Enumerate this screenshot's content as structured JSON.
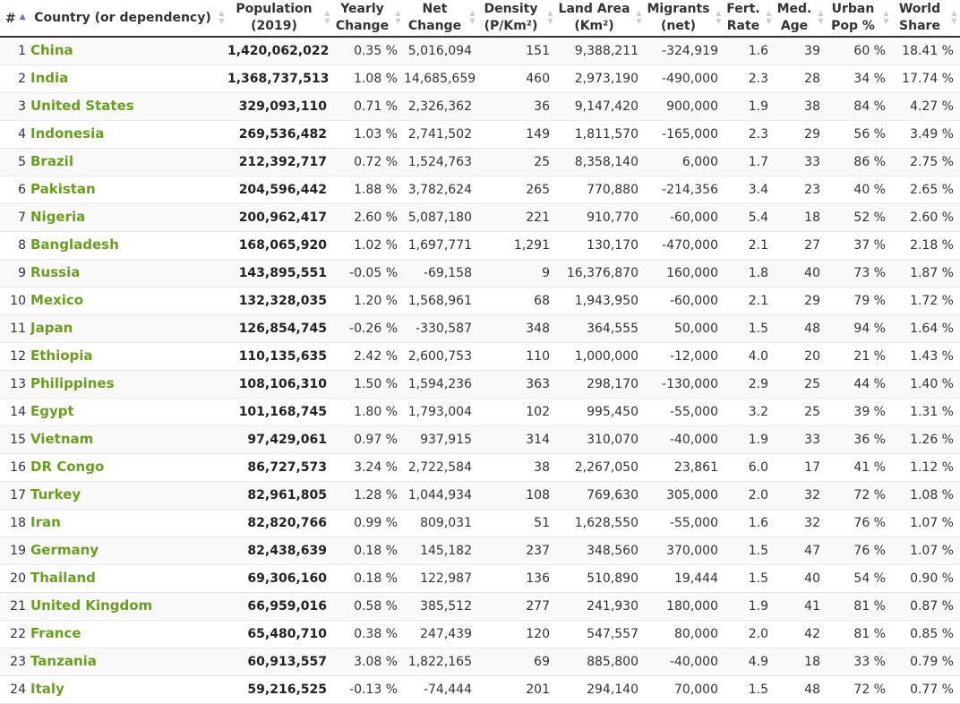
{
  "headers": {
    "rank": "#",
    "country": "Country (or dependency)",
    "population": [
      "Population",
      "(2019)"
    ],
    "yearly": [
      "Yearly",
      "Change"
    ],
    "net": [
      "Net",
      "Change"
    ],
    "density": [
      "Density",
      "(P/Km²)"
    ],
    "land": [
      "Land Area",
      "(Km²)"
    ],
    "migrants": [
      "Migrants",
      "(net)"
    ],
    "fert": [
      "Fert.",
      "Rate"
    ],
    "age": [
      "Med.",
      "Age"
    ],
    "urban": [
      "Urban",
      "Pop %"
    ],
    "share": [
      "World",
      "Share"
    ]
  },
  "sort_icons": {
    "up": "▲",
    "down": "▼",
    "active_column": "rank"
  },
  "colors": {
    "country_link": "#6a9e1f",
    "active_sort": "#5b7bd5",
    "header_rule": "#333333"
  },
  "rows": [
    [
      "1",
      "China",
      "1,420,062,022",
      "0.35 %",
      "5,016,094",
      "151",
      "9,388,211",
      "-324,919",
      "1.6",
      "39",
      "60 %",
      "18.41 %"
    ],
    [
      "2",
      "India",
      "1,368,737,513",
      "1.08 %",
      "14,685,659",
      "460",
      "2,973,190",
      "-490,000",
      "2.3",
      "28",
      "34 %",
      "17.74 %"
    ],
    [
      "3",
      "United States",
      "329,093,110",
      "0.71 %",
      "2,326,362",
      "36",
      "9,147,420",
      "900,000",
      "1.9",
      "38",
      "84 %",
      "4.27 %"
    ],
    [
      "4",
      "Indonesia",
      "269,536,482",
      "1.03 %",
      "2,741,502",
      "149",
      "1,811,570",
      "-165,000",
      "2.3",
      "29",
      "56 %",
      "3.49 %"
    ],
    [
      "5",
      "Brazil",
      "212,392,717",
      "0.72 %",
      "1,524,763",
      "25",
      "8,358,140",
      "6,000",
      "1.7",
      "33",
      "86 %",
      "2.75 %"
    ],
    [
      "6",
      "Pakistan",
      "204,596,442",
      "1.88 %",
      "3,782,624",
      "265",
      "770,880",
      "-214,356",
      "3.4",
      "23",
      "40 %",
      "2.65 %"
    ],
    [
      "7",
      "Nigeria",
      "200,962,417",
      "2.60 %",
      "5,087,180",
      "221",
      "910,770",
      "-60,000",
      "5.4",
      "18",
      "52 %",
      "2.60 %"
    ],
    [
      "8",
      "Bangladesh",
      "168,065,920",
      "1.02 %",
      "1,697,771",
      "1,291",
      "130,170",
      "-470,000",
      "2.1",
      "27",
      "37 %",
      "2.18 %"
    ],
    [
      "9",
      "Russia",
      "143,895,551",
      "-0.05 %",
      "-69,158",
      "9",
      "16,376,870",
      "160,000",
      "1.8",
      "40",
      "73 %",
      "1.87 %"
    ],
    [
      "10",
      "Mexico",
      "132,328,035",
      "1.20 %",
      "1,568,961",
      "68",
      "1,943,950",
      "-60,000",
      "2.1",
      "29",
      "79 %",
      "1.72 %"
    ],
    [
      "11",
      "Japan",
      "126,854,745",
      "-0.26 %",
      "-330,587",
      "348",
      "364,555",
      "50,000",
      "1.5",
      "48",
      "94 %",
      "1.64 %"
    ],
    [
      "12",
      "Ethiopia",
      "110,135,635",
      "2.42 %",
      "2,600,753",
      "110",
      "1,000,000",
      "-12,000",
      "4.0",
      "20",
      "21 %",
      "1.43 %"
    ],
    [
      "13",
      "Philippines",
      "108,106,310",
      "1.50 %",
      "1,594,236",
      "363",
      "298,170",
      "-130,000",
      "2.9",
      "25",
      "44 %",
      "1.40 %"
    ],
    [
      "14",
      "Egypt",
      "101,168,745",
      "1.80 %",
      "1,793,004",
      "102",
      "995,450",
      "-55,000",
      "3.2",
      "25",
      "39 %",
      "1.31 %"
    ],
    [
      "15",
      "Vietnam",
      "97,429,061",
      "0.97 %",
      "937,915",
      "314",
      "310,070",
      "-40,000",
      "1.9",
      "33",
      "36 %",
      "1.26 %"
    ],
    [
      "16",
      "DR Congo",
      "86,727,573",
      "3.24 %",
      "2,722,584",
      "38",
      "2,267,050",
      "23,861",
      "6.0",
      "17",
      "41 %",
      "1.12 %"
    ],
    [
      "17",
      "Turkey",
      "82,961,805",
      "1.28 %",
      "1,044,934",
      "108",
      "769,630",
      "305,000",
      "2.0",
      "32",
      "72 %",
      "1.08 %"
    ],
    [
      "18",
      "Iran",
      "82,820,766",
      "0.99 %",
      "809,031",
      "51",
      "1,628,550",
      "-55,000",
      "1.6",
      "32",
      "76 %",
      "1.07 %"
    ],
    [
      "19",
      "Germany",
      "82,438,639",
      "0.18 %",
      "145,182",
      "237",
      "348,560",
      "370,000",
      "1.5",
      "47",
      "76 %",
      "1.07 %"
    ],
    [
      "20",
      "Thailand",
      "69,306,160",
      "0.18 %",
      "122,987",
      "136",
      "510,890",
      "19,444",
      "1.5",
      "40",
      "54 %",
      "0.90 %"
    ],
    [
      "21",
      "United Kingdom",
      "66,959,016",
      "0.58 %",
      "385,512",
      "277",
      "241,930",
      "180,000",
      "1.9",
      "41",
      "81 %",
      "0.87 %"
    ],
    [
      "22",
      "France",
      "65,480,710",
      "0.38 %",
      "247,439",
      "120",
      "547,557",
      "80,000",
      "2.0",
      "42",
      "81 %",
      "0.85 %"
    ],
    [
      "23",
      "Tanzania",
      "60,913,557",
      "3.08 %",
      "1,822,165",
      "69",
      "885,800",
      "-40,000",
      "4.9",
      "18",
      "33 %",
      "0.79 %"
    ],
    [
      "24",
      "Italy",
      "59,216,525",
      "-0.13 %",
      "-74,444",
      "201",
      "294,140",
      "70,000",
      "1.5",
      "48",
      "72 %",
      "0.77 %"
    ]
  ]
}
